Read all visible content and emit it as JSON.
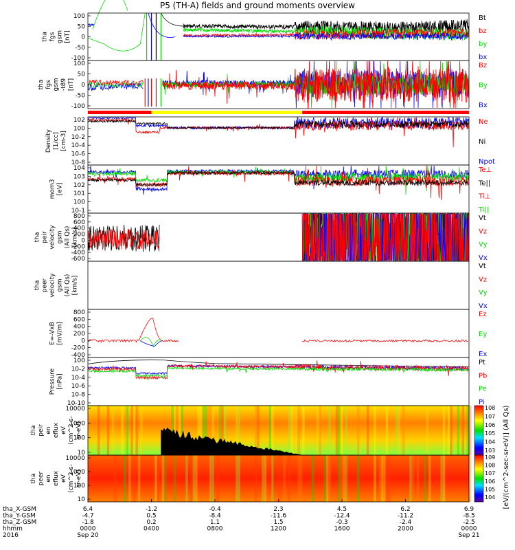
{
  "title": "P5 (TH-A) fields and ground moments overview",
  "colors": {
    "black": "#000000",
    "red": "#ff0000",
    "green": "#00dd00",
    "blue": "#0000ff",
    "yellow": "#ffff00"
  },
  "chart_data": [
    {
      "type": "line",
      "panel": "fgs_gsm",
      "ylabel": [
        "tha",
        "fgs",
        "gsm",
        "[nT]"
      ],
      "yticks": [
        "100",
        "50",
        "0",
        "-50",
        "-100"
      ],
      "ylim": [
        -100,
        100
      ],
      "series": [
        {
          "name": "Bt",
          "color": "black"
        },
        {
          "name": "bz",
          "color": "red"
        },
        {
          "name": "by",
          "color": "green"
        },
        {
          "name": "bx",
          "color": "blue"
        }
      ]
    },
    {
      "type": "line",
      "panel": "fgs_gsm_b",
      "ylabel": [
        "tha",
        "fgs",
        "gsm",
        "-t89",
        "[nT]"
      ],
      "yticks": [
        "100",
        "50",
        "0",
        "-50",
        "-100"
      ],
      "ylim": [
        -120,
        120
      ],
      "series": [
        {
          "name": "Bz",
          "color": "red"
        },
        {
          "name": "By",
          "color": "green"
        },
        {
          "name": "Bx",
          "color": "blue"
        }
      ]
    },
    {
      "type": "bar",
      "panel": "mode_bar",
      "segments": [
        {
          "from": "0000",
          "to": "0400",
          "color": "red"
        },
        {
          "from": "0400",
          "to": "1330",
          "color": "yellow"
        },
        {
          "from": "1330",
          "to": "0000",
          "color": "red"
        }
      ]
    },
    {
      "type": "line",
      "panel": "density",
      "scale": "log",
      "ylabel": [
        "Density",
        "[1/cc]",
        "[cm-3]"
      ],
      "yticks": [
        "10^2",
        "10^0",
        "10^-2",
        "10^-4",
        "10^-6",
        "10^-8"
      ],
      "series": [
        {
          "name": "Ne",
          "color": "red"
        },
        {
          "name": "Ni",
          "color": "black"
        },
        {
          "name": "Npot",
          "color": "blue"
        }
      ]
    },
    {
      "type": "line",
      "panel": "temperature",
      "scale": "log",
      "ylabel": [
        "mom3",
        "[eV]"
      ],
      "yticks": [
        "10^4",
        "10^3",
        "10^2",
        "10^1",
        "10^0",
        "10^-1"
      ],
      "series": [
        {
          "name": "Te⊥",
          "color": "red"
        },
        {
          "name": "Te||",
          "color": "black"
        },
        {
          "name": "Ti⊥",
          "color": "red"
        },
        {
          "name": "Ti||",
          "color": "green"
        }
      ]
    },
    {
      "type": "line",
      "panel": "peir_velocity",
      "ylabel": [
        "tha",
        "peir",
        "velocity",
        "gsm",
        "(All Qs)",
        "[km/s]"
      ],
      "yticks": [
        "800",
        "600",
        "400",
        "200",
        "0",
        "-200",
        "-400",
        "-600"
      ],
      "ylim": [
        -700,
        850
      ],
      "series": [
        {
          "name": "Vt",
          "color": "black"
        },
        {
          "name": "Vz",
          "color": "red"
        },
        {
          "name": "Vy",
          "color": "green"
        },
        {
          "name": "Vx",
          "color": "blue"
        }
      ]
    },
    {
      "type": "line",
      "panel": "peer_velocity",
      "ylabel": [
        "tha",
        "peer",
        "velocity",
        "gsm",
        "(All Qs)",
        "[km/s]"
      ],
      "yticks": [],
      "series": [
        {
          "name": "Vt",
          "color": "black"
        },
        {
          "name": "Vz",
          "color": "red"
        },
        {
          "name": "Vy",
          "color": "green"
        },
        {
          "name": "Vx",
          "color": "blue"
        }
      ]
    },
    {
      "type": "line",
      "panel": "e_field",
      "ylabel": [
        "E=-VxB",
        "[mV/m]"
      ],
      "yticks": [
        "800",
        "600",
        "400",
        "200",
        "0",
        "-200",
        "-400"
      ],
      "ylim": [
        -450,
        850
      ],
      "series": [
        {
          "name": "Ez",
          "color": "red"
        },
        {
          "name": "Ey",
          "color": "green"
        },
        {
          "name": "Ex",
          "color": "blue"
        }
      ]
    },
    {
      "type": "line",
      "panel": "pressure",
      "scale": "log",
      "ylabel": [
        "Pressure",
        "[nPa]"
      ],
      "yticks": [
        "10^0",
        "10^-2",
        "10^-4",
        "10^-6",
        "10^-8",
        "10^-10"
      ],
      "series": [
        {
          "name": "Pt",
          "color": "black"
        },
        {
          "name": "Pb",
          "color": "red"
        },
        {
          "name": "Pe",
          "color": "green"
        },
        {
          "name": "Pi",
          "color": "blue"
        }
      ]
    },
    {
      "type": "heatmap",
      "panel": "peir_spectrogram",
      "ylabel": [
        "tha",
        "peir",
        "en",
        "eflux",
        "eV",
        "(cm^2-s-",
        "sr-eV)"
      ],
      "yticks": [
        "10000",
        "1000",
        "100",
        "10"
      ],
      "colorbar_ticks": [
        "10^8",
        "10^7",
        "10^6",
        "10^5",
        "10^4",
        "10^3"
      ],
      "colorbar_label": "[eV/(cm^2-sec-sr-eV)] (All Qs)"
    },
    {
      "type": "heatmap",
      "panel": "peer_spectrogram",
      "ylabel": [
        "tha",
        "peer",
        "en",
        "eflux",
        "eV",
        "(cm^2-s-",
        "sr-eV)"
      ],
      "yticks": [
        "10000",
        "1000",
        "100",
        "10"
      ],
      "colorbar_ticks": [
        "10^9",
        "10^8",
        "10^7",
        "10^6",
        "10^5",
        "10^4"
      ]
    }
  ],
  "xaxis": {
    "rows": [
      {
        "label": "tha_X-GSM",
        "values": [
          "6.4",
          "-1.2",
          "-0.4",
          "2.3",
          "4.5",
          "6.2",
          "6.9"
        ]
      },
      {
        "label": "tha_Y-GSM",
        "values": [
          "-4.7",
          "0.5",
          "-8.4",
          "-11.6",
          "-12.4",
          "-11.2",
          "-8.5"
        ]
      },
      {
        "label": "tha_Z-GSM",
        "values": [
          "-1.8",
          "0.2",
          "1.1",
          "1.5",
          "-0.3",
          "-2.4",
          "-2.5"
        ]
      },
      {
        "label": "hhmm",
        "values": [
          "0000",
          "0400",
          "0800",
          "1200",
          "1600",
          "2000",
          "0000"
        ]
      },
      {
        "label": "2016",
        "values": [
          "Sep 20",
          "",
          "",
          "",
          "",
          "",
          "Sep 21"
        ]
      }
    ]
  }
}
